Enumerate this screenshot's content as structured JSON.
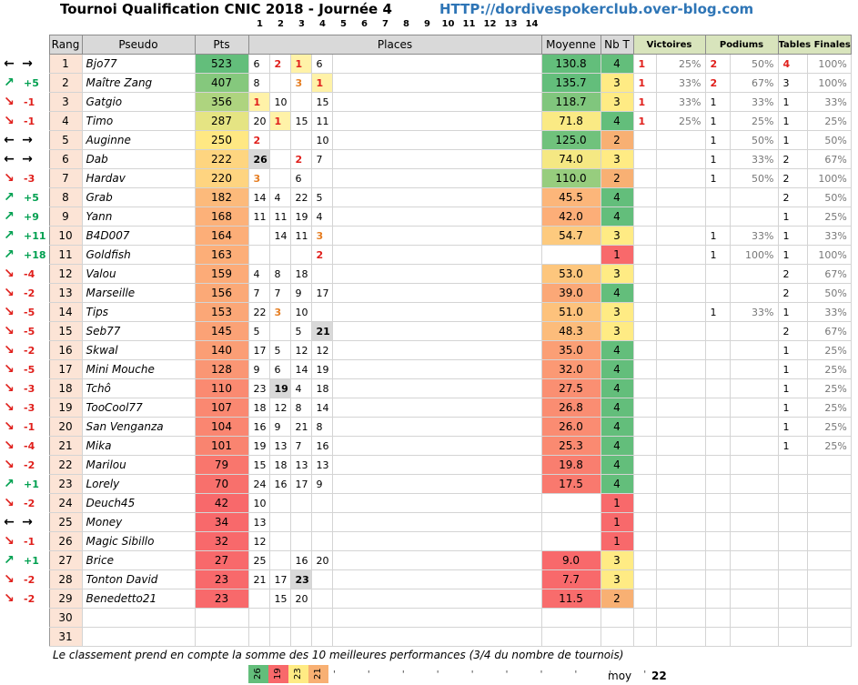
{
  "title": "Tournoi Qualification CNIC 2018 - Journée 4",
  "url": "HTTP://dordivespokerclub.over-blog.com",
  "column_numbers": [
    "1",
    "2",
    "3",
    "4",
    "5",
    "6",
    "7",
    "8",
    "9",
    "10",
    "11",
    "12",
    "13",
    "14"
  ],
  "headers": {
    "rang": "Rang",
    "pseudo": "Pseudo",
    "pts": "Pts",
    "places": "Places",
    "moyenne": "Moyenne",
    "nbt": "Nb T",
    "victoires": "Victoires",
    "podiums": "Podiums",
    "tables": "Tables Finales"
  },
  "colors": {
    "header_gray": "#d9d9d9",
    "header_green": "#d8e4bc",
    "rank_bg": "#fce4d6",
    "red_place": "#e0201c",
    "orange_place": "#e67e22",
    "nbt_green": "#63be7b",
    "nbt_orange": "#f8b073",
    "nbt_red": "#f8696b",
    "trend_up": "#00a050",
    "trend_down": "#e0201c"
  },
  "rows": [
    {
      "trend": "eq",
      "delta": "",
      "rang": "1",
      "pseudo": "Bjo77",
      "pts": "523",
      "places": [
        "6",
        "2",
        "1",
        "6"
      ],
      "moyenne": "130.8",
      "nbt": "4",
      "vic": "1",
      "vicp": "25%",
      "pod": "2",
      "podp": "50%",
      "tab": "4",
      "tabp": "100%"
    },
    {
      "trend": "up",
      "delta": "+5",
      "rang": "2",
      "pseudo": "Maître Zang",
      "pts": "407",
      "places": [
        "8",
        "",
        "3",
        "1"
      ],
      "moyenne": "135.7",
      "nbt": "3",
      "vic": "1",
      "vicp": "33%",
      "pod": "2",
      "podp": "67%",
      "tab": "3",
      "tabp": "100%"
    },
    {
      "trend": "down",
      "delta": "-1",
      "rang": "3",
      "pseudo": "Gatgio",
      "pts": "356",
      "places": [
        "1",
        "10",
        "",
        "15"
      ],
      "moyenne": "118.7",
      "nbt": "3",
      "vic": "1",
      "vicp": "33%",
      "pod": "1",
      "podp": "33%",
      "tab": "1",
      "tabp": "33%"
    },
    {
      "trend": "down",
      "delta": "-1",
      "rang": "4",
      "pseudo": "Timo",
      "pts": "287",
      "places": [
        "20",
        "1",
        "15",
        "11"
      ],
      "moyenne": "71.8",
      "nbt": "4",
      "vic": "1",
      "vicp": "25%",
      "pod": "1",
      "podp": "25%",
      "tab": "1",
      "tabp": "25%"
    },
    {
      "trend": "eq",
      "delta": "",
      "rang": "5",
      "pseudo": "Auginne",
      "pts": "250",
      "places": [
        "2",
        "",
        "",
        "10"
      ],
      "moyenne": "125.0",
      "nbt": "2",
      "vic": "",
      "vicp": "",
      "pod": "1",
      "podp": "50%",
      "tab": "1",
      "tabp": "50%"
    },
    {
      "trend": "eq",
      "delta": "",
      "rang": "6",
      "pseudo": "Dab",
      "pts": "222",
      "places": [
        "26",
        "",
        "2",
        "7"
      ],
      "moyenne": "74.0",
      "nbt": "3",
      "vic": "",
      "vicp": "",
      "pod": "1",
      "podp": "33%",
      "tab": "2",
      "tabp": "67%"
    },
    {
      "trend": "down",
      "delta": "-3",
      "rang": "7",
      "pseudo": "Hardav",
      "pts": "220",
      "places": [
        "3",
        "",
        "6",
        ""
      ],
      "moyenne": "110.0",
      "nbt": "2",
      "vic": "",
      "vicp": "",
      "pod": "1",
      "podp": "50%",
      "tab": "2",
      "tabp": "100%"
    },
    {
      "trend": "up",
      "delta": "+5",
      "rang": "8",
      "pseudo": "Grab",
      "pts": "182",
      "places": [
        "14",
        "4",
        "22",
        "5"
      ],
      "moyenne": "45.5",
      "nbt": "4",
      "vic": "",
      "vicp": "",
      "pod": "",
      "podp": "",
      "tab": "2",
      "tabp": "50%"
    },
    {
      "trend": "up",
      "delta": "+9",
      "rang": "9",
      "pseudo": "Yann",
      "pts": "168",
      "places": [
        "11",
        "11",
        "19",
        "4"
      ],
      "moyenne": "42.0",
      "nbt": "4",
      "vic": "",
      "vicp": "",
      "pod": "",
      "podp": "",
      "tab": "1",
      "tabp": "25%"
    },
    {
      "trend": "up",
      "delta": "+11",
      "rang": "10",
      "pseudo": "B4D007",
      "pts": "164",
      "places": [
        "",
        "14",
        "11",
        "3"
      ],
      "moyenne": "54.7",
      "nbt": "3",
      "vic": "",
      "vicp": "",
      "pod": "1",
      "podp": "33%",
      "tab": "1",
      "tabp": "33%"
    },
    {
      "trend": "up",
      "delta": "+18",
      "rang": "11",
      "pseudo": "Goldfish",
      "pts": "163",
      "places": [
        "",
        "",
        "",
        "2"
      ],
      "moyenne": "",
      "nbt": "1",
      "vic": "",
      "vicp": "",
      "pod": "1",
      "podp": "100%",
      "tab": "1",
      "tabp": "100%"
    },
    {
      "trend": "down",
      "delta": "-4",
      "rang": "12",
      "pseudo": "Valou",
      "pts": "159",
      "places": [
        "4",
        "8",
        "18",
        ""
      ],
      "moyenne": "53.0",
      "nbt": "3",
      "vic": "",
      "vicp": "",
      "pod": "",
      "podp": "",
      "tab": "2",
      "tabp": "67%"
    },
    {
      "trend": "down",
      "delta": "-2",
      "rang": "13",
      "pseudo": "Marseille",
      "pts": "156",
      "places": [
        "7",
        "7",
        "9",
        "17"
      ],
      "moyenne": "39.0",
      "nbt": "4",
      "vic": "",
      "vicp": "",
      "pod": "",
      "podp": "",
      "tab": "2",
      "tabp": "50%"
    },
    {
      "trend": "down",
      "delta": "-5",
      "rang": "14",
      "pseudo": "Tips",
      "pts": "153",
      "places": [
        "22",
        "3",
        "10",
        ""
      ],
      "moyenne": "51.0",
      "nbt": "3",
      "vic": "",
      "vicp": "",
      "pod": "1",
      "podp": "33%",
      "tab": "1",
      "tabp": "33%"
    },
    {
      "trend": "down",
      "delta": "-5",
      "rang": "15",
      "pseudo": "Seb77",
      "pts": "145",
      "places": [
        "5",
        "",
        "5",
        "21"
      ],
      "moyenne": "48.3",
      "nbt": "3",
      "vic": "",
      "vicp": "",
      "pod": "",
      "podp": "",
      "tab": "2",
      "tabp": "67%"
    },
    {
      "trend": "down",
      "delta": "-2",
      "rang": "16",
      "pseudo": "Skwal",
      "pts": "140",
      "places": [
        "17",
        "5",
        "12",
        "12"
      ],
      "moyenne": "35.0",
      "nbt": "4",
      "vic": "",
      "vicp": "",
      "pod": "",
      "podp": "",
      "tab": "1",
      "tabp": "25%"
    },
    {
      "trend": "down",
      "delta": "-5",
      "rang": "17",
      "pseudo": "Mini Mouche",
      "pts": "128",
      "places": [
        "9",
        "6",
        "14",
        "19"
      ],
      "moyenne": "32.0",
      "nbt": "4",
      "vic": "",
      "vicp": "",
      "pod": "",
      "podp": "",
      "tab": "1",
      "tabp": "25%"
    },
    {
      "trend": "down",
      "delta": "-3",
      "rang": "18",
      "pseudo": "Tchô",
      "pts": "110",
      "places": [
        "23",
        "19",
        "4",
        "18"
      ],
      "moyenne": "27.5",
      "nbt": "4",
      "vic": "",
      "vicp": "",
      "pod": "",
      "podp": "",
      "tab": "1",
      "tabp": "25%"
    },
    {
      "trend": "down",
      "delta": "-3",
      "rang": "19",
      "pseudo": "TooCool77",
      "pts": "107",
      "places": [
        "18",
        "12",
        "8",
        "14"
      ],
      "moyenne": "26.8",
      "nbt": "4",
      "vic": "",
      "vicp": "",
      "pod": "",
      "podp": "",
      "tab": "1",
      "tabp": "25%"
    },
    {
      "trend": "down",
      "delta": "-1",
      "rang": "20",
      "pseudo": "San Venganza",
      "pts": "104",
      "places": [
        "16",
        "9",
        "21",
        "8"
      ],
      "moyenne": "26.0",
      "nbt": "4",
      "vic": "",
      "vicp": "",
      "pod": "",
      "podp": "",
      "tab": "1",
      "tabp": "25%"
    },
    {
      "trend": "down",
      "delta": "-4",
      "rang": "21",
      "pseudo": "Mika",
      "pts": "101",
      "places": [
        "19",
        "13",
        "7",
        "16"
      ],
      "moyenne": "25.3",
      "nbt": "4",
      "vic": "",
      "vicp": "",
      "pod": "",
      "podp": "",
      "tab": "1",
      "tabp": "25%"
    },
    {
      "trend": "down",
      "delta": "-2",
      "rang": "22",
      "pseudo": "Marilou",
      "pts": "79",
      "places": [
        "15",
        "18",
        "13",
        "13"
      ],
      "moyenne": "19.8",
      "nbt": "4",
      "vic": "",
      "vicp": "",
      "pod": "",
      "podp": "",
      "tab": "",
      "tabp": ""
    },
    {
      "trend": "up",
      "delta": "+1",
      "rang": "23",
      "pseudo": "Lorely",
      "pts": "70",
      "places": [
        "24",
        "16",
        "17",
        "9"
      ],
      "moyenne": "17.5",
      "nbt": "4",
      "vic": "",
      "vicp": "",
      "pod": "",
      "podp": "",
      "tab": "",
      "tabp": ""
    },
    {
      "trend": "down",
      "delta": "-2",
      "rang": "24",
      "pseudo": "Deuch45",
      "pts": "42",
      "places": [
        "10",
        "",
        "",
        ""
      ],
      "moyenne": "",
      "nbt": "1",
      "vic": "",
      "vicp": "",
      "pod": "",
      "podp": "",
      "tab": "",
      "tabp": ""
    },
    {
      "trend": "eq",
      "delta": "",
      "rang": "25",
      "pseudo": "Money",
      "pts": "34",
      "places": [
        "13",
        "",
        "",
        ""
      ],
      "moyenne": "",
      "nbt": "1",
      "vic": "",
      "vicp": "",
      "pod": "",
      "podp": "",
      "tab": "",
      "tabp": ""
    },
    {
      "trend": "down",
      "delta": "-1",
      "rang": "26",
      "pseudo": "Magic Sibillo",
      "pts": "32",
      "places": [
        "12",
        "",
        "",
        ""
      ],
      "moyenne": "",
      "nbt": "1",
      "vic": "",
      "vicp": "",
      "pod": "",
      "podp": "",
      "tab": "",
      "tabp": ""
    },
    {
      "trend": "up",
      "delta": "+1",
      "rang": "27",
      "pseudo": "Brice",
      "pts": "27",
      "places": [
        "25",
        "",
        "16",
        "20"
      ],
      "moyenne": "9.0",
      "nbt": "3",
      "vic": "",
      "vicp": "",
      "pod": "",
      "podp": "",
      "tab": "",
      "tabp": ""
    },
    {
      "trend": "down",
      "delta": "-2",
      "rang": "28",
      "pseudo": "Tonton David",
      "pts": "23",
      "places": [
        "21",
        "17",
        "23",
        ""
      ],
      "moyenne": "7.7",
      "nbt": "3",
      "vic": "",
      "vicp": "",
      "pod": "",
      "podp": "",
      "tab": "",
      "tabp": ""
    },
    {
      "trend": "down",
      "delta": "-2",
      "rang": "29",
      "pseudo": "Benedetto21",
      "pts": "23",
      "places": [
        "",
        "15",
        "20",
        ""
      ],
      "moyenne": "11.5",
      "nbt": "2",
      "vic": "",
      "vicp": "",
      "pod": "",
      "podp": "",
      "tab": "",
      "tabp": ""
    },
    {
      "trend": "none",
      "delta": "",
      "rang": "30",
      "pseudo": "",
      "pts": "",
      "places": [
        "",
        "",
        "",
        ""
      ],
      "moyenne": "",
      "nbt": "",
      "vic": "",
      "vicp": "",
      "pod": "",
      "podp": "",
      "tab": "",
      "tabp": ""
    },
    {
      "trend": "none",
      "delta": "",
      "rang": "31",
      "pseudo": "",
      "pts": "",
      "places": [
        "",
        "",
        "",
        ""
      ],
      "moyenne": "",
      "nbt": "",
      "vic": "",
      "vicp": "",
      "pod": "",
      "podp": "",
      "tab": "",
      "tabp": ""
    }
  ],
  "footnote": "Le classement prend en compte la somme des 10 meilleures performances (3/4 du nombre de tournois)",
  "legend": [
    "26",
    "19",
    "23",
    "21"
  ],
  "legend_colors": [
    "#63be7b",
    "#f8696b",
    "#ffeb84",
    "#f8b073"
  ],
  "moy_label": "moy",
  "moy_value": "22"
}
